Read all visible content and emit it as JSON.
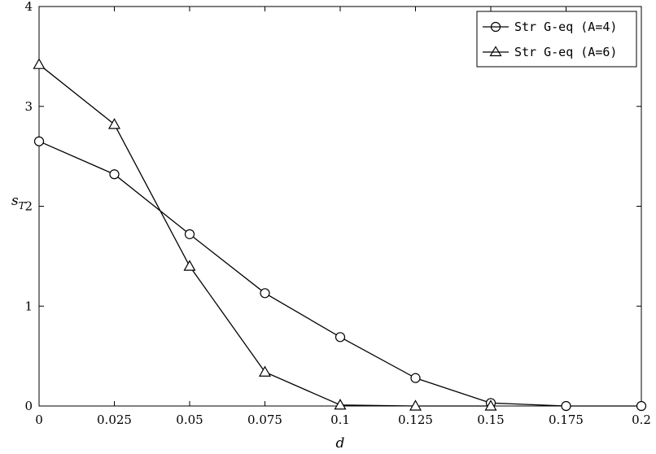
{
  "chart_data": {
    "type": "line",
    "xlabel": "d",
    "ylabel": "s_T",
    "ylabel_main": "s",
    "ylabel_sub": "T",
    "xlim": [
      0,
      0.2
    ],
    "ylim": [
      0,
      4
    ],
    "x_ticks": [
      "0",
      "0.025",
      "0.05",
      "0.075",
      "0.1",
      "0.125",
      "0.15",
      "0.175",
      "0.2"
    ],
    "y_ticks": [
      "0",
      "1",
      "2",
      "3",
      "4"
    ],
    "grid": false,
    "legend_position": "top-right",
    "series": [
      {
        "name": "Str G-eq (A=4)",
        "marker": "circle",
        "x": [
          0,
          0.025,
          0.05,
          0.075,
          0.1,
          0.125,
          0.15,
          0.175,
          0.2
        ],
        "y": [
          2.65,
          2.32,
          1.72,
          1.13,
          0.69,
          0.28,
          0.03,
          0.0,
          0.0
        ]
      },
      {
        "name": "Str G-eq (A=6)",
        "marker": "triangle",
        "x": [
          0,
          0.025,
          0.05,
          0.075,
          0.1,
          0.125,
          0.15
        ],
        "y": [
          3.42,
          2.82,
          1.4,
          0.34,
          0.01,
          0.0,
          0.0
        ]
      }
    ]
  }
}
